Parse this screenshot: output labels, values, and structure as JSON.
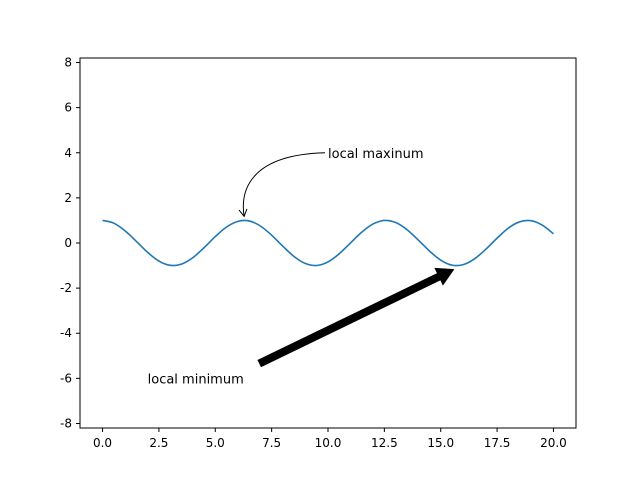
{
  "chart_data": {
    "type": "line",
    "title": "",
    "xlabel": "",
    "ylabel": "",
    "xlim": [
      -1.0,
      21.0
    ],
    "ylim": [
      -8.2,
      8.2
    ],
    "grid": false,
    "x_ticks": [
      0.0,
      2.5,
      5.0,
      7.5,
      10.0,
      12.5,
      15.0,
      17.5,
      20.0
    ],
    "x_tick_labels": [
      "0.0",
      "2.5",
      "5.0",
      "7.5",
      "10.0",
      "12.5",
      "15.0",
      "17.5",
      "20.0"
    ],
    "y_ticks": [
      -8,
      -6,
      -4,
      -2,
      0,
      2,
      4,
      6,
      8
    ],
    "y_tick_labels": [
      "-8",
      "-6",
      "-4",
      "-2",
      "0",
      "2",
      "4",
      "6",
      "8"
    ],
    "series": [
      {
        "color": "#1f77b4",
        "x": [
          0.0,
          0.5,
          1.0,
          1.5,
          2.0,
          2.5,
          3.0,
          3.5,
          4.0,
          4.5,
          5.0,
          5.5,
          6.0,
          6.5,
          7.0,
          7.5,
          8.0,
          8.5,
          9.0,
          9.5,
          10.0,
          10.5,
          11.0,
          11.5,
          12.0,
          12.5,
          13.0,
          13.5,
          14.0,
          14.5,
          15.0,
          15.5,
          16.0,
          16.5,
          17.0,
          17.5,
          18.0,
          18.5,
          19.0,
          19.5,
          20.0
        ],
        "y": [
          1.0,
          0.878,
          0.54,
          0.071,
          -0.416,
          -0.801,
          -0.99,
          -0.936,
          -0.654,
          -0.211,
          0.284,
          0.709,
          0.96,
          0.977,
          0.754,
          0.347,
          -0.146,
          -0.602,
          -0.911,
          -0.997,
          -0.839,
          -0.476,
          0.004,
          0.483,
          0.844,
          0.998,
          0.907,
          0.594,
          0.137,
          -0.355,
          -0.76,
          -0.982,
          -0.958,
          -0.701,
          -0.275,
          0.216,
          0.66,
          0.939,
          0.989,
          0.795,
          0.408
        ]
      }
    ],
    "annotations": [
      {
        "text": "local maxinum",
        "text_pos": [
          10,
          4
        ],
        "target": [
          6.28,
          1
        ],
        "style": "curved-thin-arrow"
      },
      {
        "text": "local minimum",
        "text_pos": [
          2,
          -6
        ],
        "target": [
          15.7,
          -1
        ],
        "style": "thick-wedge-arrow"
      }
    ]
  }
}
